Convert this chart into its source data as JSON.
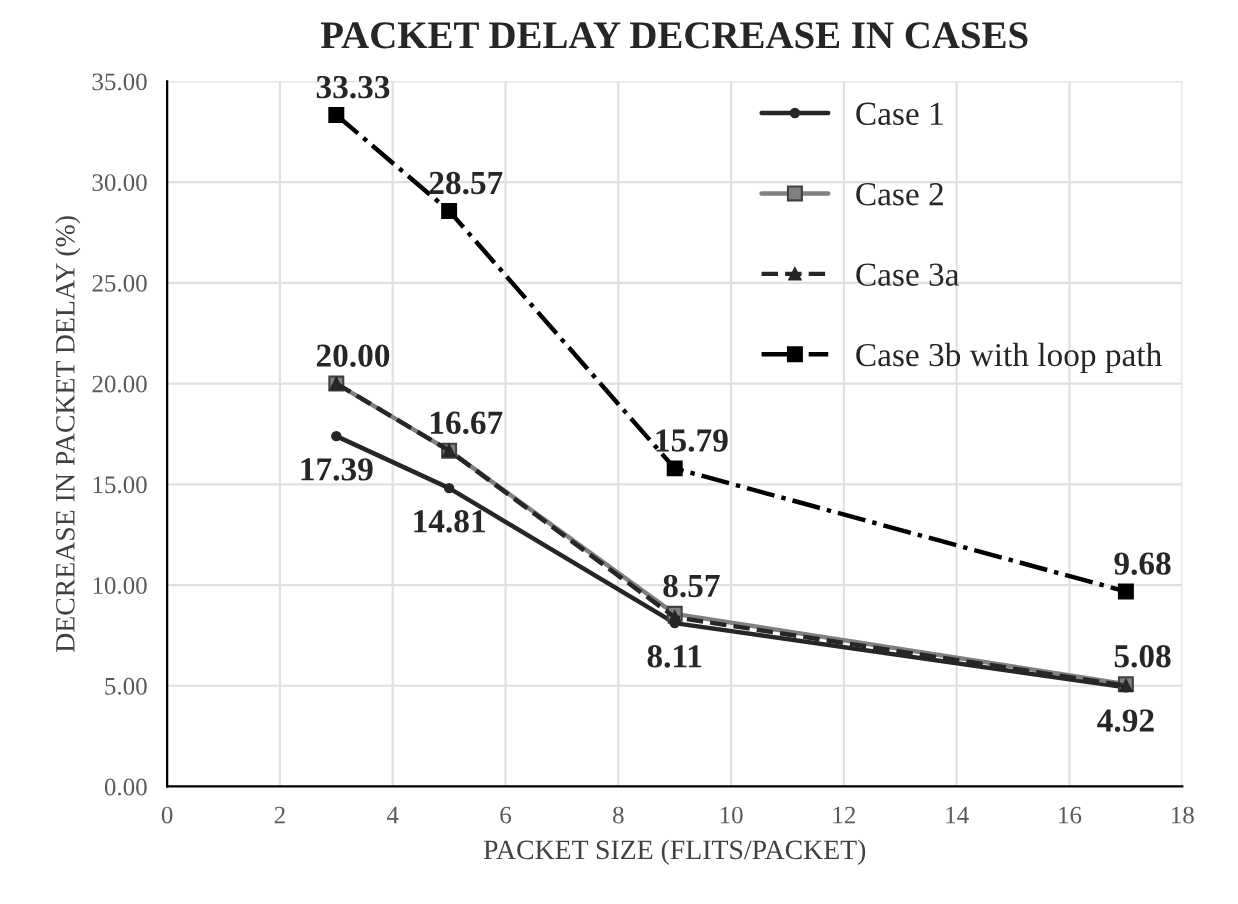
{
  "chart_data": {
    "type": "line",
    "title": "PACKET DELAY DECREASE IN CASES",
    "xlabel": "PACKET SIZE (FLITS/PACKET)",
    "ylabel": "DECREASE IN PACKET DELAY (%)",
    "x": [
      3,
      5,
      9,
      17
    ],
    "series": [
      {
        "name": "Case 1",
        "color": "#262626",
        "marker": "circle",
        "line_style": "solid",
        "values": [
          17.39,
          14.81,
          8.11,
          4.92
        ],
        "value_labels": [
          "17.39",
          "14.81",
          "8.11",
          "4.92"
        ]
      },
      {
        "name": "Case 2",
        "color": "#808080",
        "marker": "square",
        "line_style": "solid",
        "values": [
          20.0,
          16.67,
          8.57,
          5.08
        ],
        "value_labels": [
          "20.00",
          "16.67",
          "8.57",
          "5.08"
        ]
      },
      {
        "name": "Case 3a",
        "color": "#262626",
        "marker": "triangle",
        "line_style": "dashed",
        "values": [
          20.0,
          16.67,
          8.4,
          5.0
        ]
      },
      {
        "name": "Case 3b with loop path",
        "color": "#000000",
        "marker": "square",
        "line_style": "dashdot",
        "values": [
          33.33,
          28.57,
          15.79,
          9.68
        ],
        "value_labels": [
          "33.33",
          "28.57",
          "15.79",
          "9.68"
        ]
      }
    ],
    "xlim": [
      0,
      18
    ],
    "xticks": [
      0,
      2,
      4,
      6,
      8,
      10,
      12,
      14,
      16,
      18
    ],
    "ylim": [
      0,
      35
    ],
    "yticks": [
      {
        "value": 0,
        "label": "0.00"
      },
      {
        "value": 5,
        "label": "5.00"
      },
      {
        "value": 10,
        "label": "10.00"
      },
      {
        "value": 15,
        "label": "15.00"
      },
      {
        "value": 20,
        "label": "20.00"
      },
      {
        "value": 25,
        "label": "25.00"
      },
      {
        "value": 30,
        "label": "30.00"
      },
      {
        "value": 35,
        "label": "35.00"
      }
    ],
    "grid": true,
    "legend": "top right"
  }
}
